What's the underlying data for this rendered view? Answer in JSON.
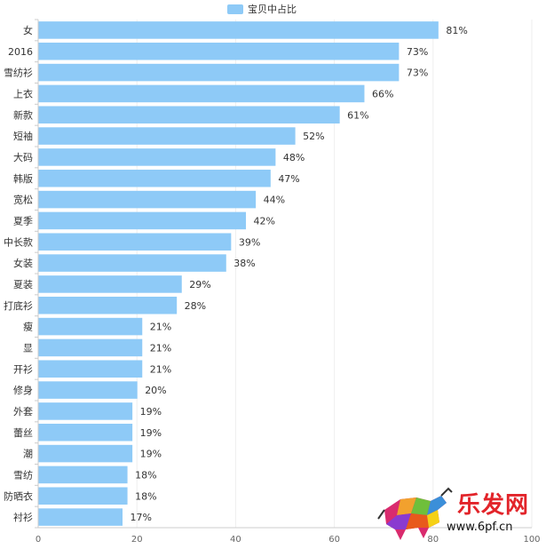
{
  "chart_data": {
    "type": "bar",
    "orientation": "horizontal",
    "series_name": "宝贝中占比",
    "legend_position": "top-center",
    "color": "#8ecaf7",
    "categories": [
      "女",
      "2016",
      "雪纺衫",
      "上衣",
      "新款",
      "短袖",
      "大码",
      "韩版",
      "宽松",
      "夏季",
      "中长款",
      "女装",
      "夏装",
      "打底衫",
      "瘦",
      "显",
      "开衫",
      "修身",
      "外套",
      "蕾丝",
      "潮",
      "雪纺",
      "防晒衣",
      "衬衫"
    ],
    "values": [
      81,
      73,
      73,
      66,
      61,
      52,
      48,
      47,
      44,
      42,
      39,
      38,
      29,
      28,
      21,
      21,
      21,
      20,
      19,
      19,
      19,
      18,
      18,
      17
    ],
    "value_labels": [
      "81%",
      "73%",
      "73%",
      "66%",
      "61%",
      "52%",
      "48%",
      "47%",
      "44%",
      "42%",
      "39%",
      "38%",
      "29%",
      "28%",
      "21%",
      "21%",
      "21%",
      "20%",
      "19%",
      "19%",
      "19%",
      "18%",
      "18%",
      "17%"
    ],
    "xlim": [
      0,
      100
    ],
    "xticks": [
      0,
      20,
      40,
      60,
      80,
      100
    ],
    "grid": true
  },
  "watermark": {
    "logo_text": "乐发网",
    "url": "www.6pf.cn"
  }
}
